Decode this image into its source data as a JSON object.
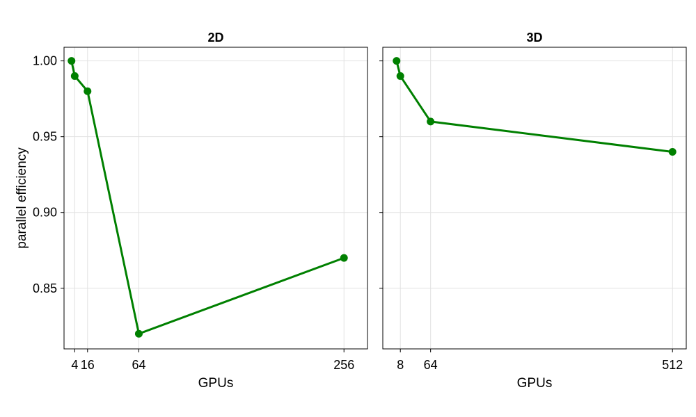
{
  "chart_data": [
    {
      "type": "line",
      "title": "2D",
      "xlabel": "GPUs",
      "ylabel": "parallel efficiency",
      "x": [
        1,
        4,
        16,
        64,
        256
      ],
      "xticks": [
        4,
        16,
        64,
        256
      ],
      "xlim": [
        -6,
        278
      ],
      "ylim": [
        0.81,
        1.009
      ],
      "yticks": [
        "0.85",
        "0.90",
        "0.95",
        "1.00"
      ],
      "grid": true,
      "series": [
        {
          "values": [
            1.0,
            0.99,
            0.98,
            0.82,
            0.87
          ],
          "color": "#008000"
        }
      ]
    },
    {
      "type": "line",
      "title": "3D",
      "xlabel": "GPUs",
      "ylabel": "",
      "x": [
        1,
        8,
        64,
        512
      ],
      "xticks": [
        8,
        64,
        512
      ],
      "xlim": [
        -24.5,
        537.5
      ],
      "ylim": [
        0.81,
        1.009
      ],
      "yticks": [
        "0.85",
        "0.90",
        "0.95",
        "1.00"
      ],
      "grid": true,
      "series": [
        {
          "values": [
            1.0,
            0.99,
            0.96,
            0.94
          ],
          "color": "#008000"
        }
      ]
    }
  ]
}
